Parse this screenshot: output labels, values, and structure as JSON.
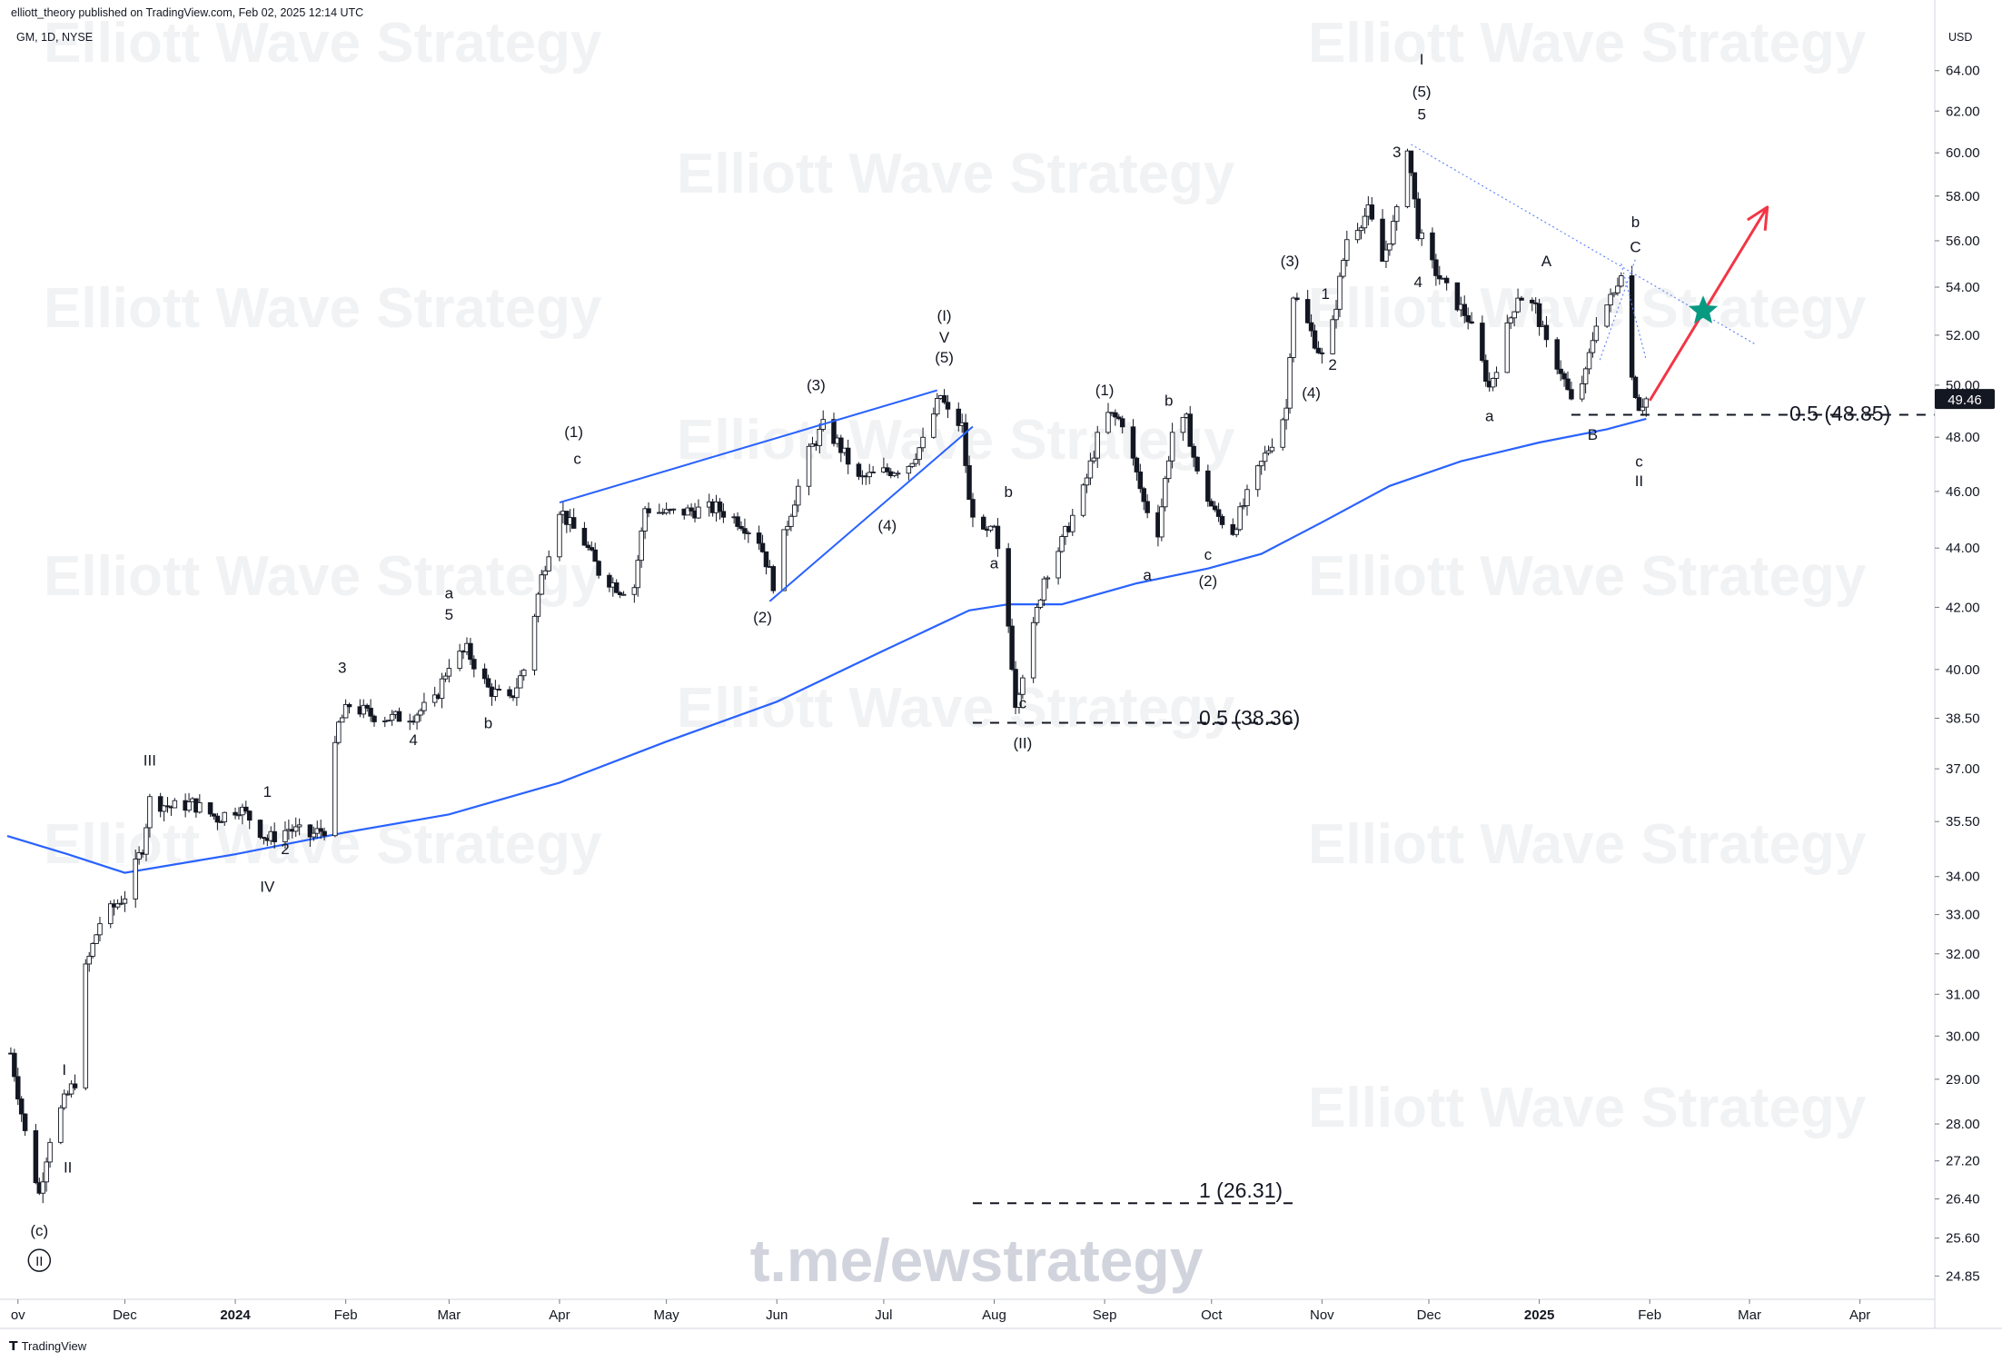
{
  "header": {
    "published_by": "elliott_theory published on TradingView.com, Feb 02, 2025 12:14 UTC",
    "symbol": "GM, 1D, NYSE",
    "currency": "USD",
    "brand": "TradingView"
  },
  "watermarks": {
    "repeated": "Elliott Wave Strategy",
    "telegram": "t.me/ewstrategy"
  },
  "colors": {
    "up_candle": "#ffffff",
    "down_candle": "#131722",
    "candle_outline": "#131722",
    "ma_line": "#2962ff",
    "channel_line": "#2962ff",
    "projection_arrow": "#f23645",
    "target_star": "#089981",
    "last_price_bg": "#131722",
    "watermark": "#f1f2f4"
  },
  "chart_data": {
    "type": "candlestick",
    "title": "",
    "xlabel": "",
    "ylabel": "USD",
    "y_scale": "log",
    "ylim": [
      24.4,
      66.5
    ],
    "x_range": [
      "2023-10-29",
      "2025-04-22"
    ],
    "y_ticks": [
      "64.00",
      "62.00",
      "60.00",
      "58.00",
      "56.00",
      "54.00",
      "52.00",
      "50.00",
      "48.00",
      "46.00",
      "44.00",
      "42.00",
      "40.00",
      "38.50",
      "37.00",
      "35.50",
      "34.00",
      "33.00",
      "32.00",
      "31.00",
      "30.00",
      "29.00",
      "28.00",
      "27.20",
      "26.40",
      "25.60",
      "24.85"
    ],
    "x_ticks": [
      {
        "label": "ov",
        "date": "2023-11-01",
        "bold": false
      },
      {
        "label": "Dec",
        "date": "2023-12-01",
        "bold": false
      },
      {
        "label": "2024",
        "date": "2024-01-01",
        "bold": true
      },
      {
        "label": "Feb",
        "date": "2024-02-01",
        "bold": false
      },
      {
        "label": "Mar",
        "date": "2024-03-01",
        "bold": false
      },
      {
        "label": "Apr",
        "date": "2024-04-01",
        "bold": false
      },
      {
        "label": "May",
        "date": "2024-05-01",
        "bold": false
      },
      {
        "label": "Jun",
        "date": "2024-06-01",
        "bold": false
      },
      {
        "label": "Jul",
        "date": "2024-07-01",
        "bold": false
      },
      {
        "label": "Aug",
        "date": "2024-08-01",
        "bold": false
      },
      {
        "label": "Sep",
        "date": "2024-09-01",
        "bold": false
      },
      {
        "label": "Oct",
        "date": "2024-10-01",
        "bold": false
      },
      {
        "label": "Nov",
        "date": "2024-11-01",
        "bold": false
      },
      {
        "label": "Dec",
        "date": "2024-12-01",
        "bold": false
      },
      {
        "label": "2025",
        "date": "2025-01-01",
        "bold": true
      },
      {
        "label": "Feb",
        "date": "2025-02-01",
        "bold": false
      },
      {
        "label": "Mar",
        "date": "2025-03-01",
        "bold": false
      },
      {
        "label": "Apr",
        "date": "2025-04-01",
        "bold": false
      }
    ],
    "price_path": [
      [
        "2023-10-30",
        29.6
      ],
      [
        "2023-11-03",
        27.8
      ],
      [
        "2023-11-07",
        26.5
      ],
      [
        "2023-11-10",
        27.7
      ],
      [
        "2023-11-14",
        28.5
      ],
      [
        "2023-11-18",
        29.1
      ],
      [
        "2023-11-20",
        31.6
      ],
      [
        "2023-11-24",
        32.8
      ],
      [
        "2023-11-28",
        33.2
      ],
      [
        "2023-12-01",
        33.5
      ],
      [
        "2023-12-06",
        34.8
      ],
      [
        "2023-12-08",
        36.1
      ],
      [
        "2023-12-14",
        35.9
      ],
      [
        "2023-12-20",
        36.0
      ],
      [
        "2023-12-27",
        35.6
      ],
      [
        "2024-01-02",
        35.9
      ],
      [
        "2024-01-05",
        35.6
      ],
      [
        "2024-01-10",
        35.0
      ],
      [
        "2024-01-16",
        35.3
      ],
      [
        "2024-01-22",
        35.1
      ],
      [
        "2024-01-26",
        35.3
      ],
      [
        "2024-01-30",
        38.3
      ],
      [
        "2024-02-02",
        38.9
      ],
      [
        "2024-02-08",
        38.6
      ],
      [
        "2024-02-14",
        38.5
      ],
      [
        "2024-02-20",
        38.6
      ],
      [
        "2024-02-26",
        39.0
      ],
      [
        "2024-03-01",
        40.2
      ],
      [
        "2024-03-06",
        40.6
      ],
      [
        "2024-03-12",
        39.4
      ],
      [
        "2024-03-18",
        39.0
      ],
      [
        "2024-03-22",
        40.0
      ],
      [
        "2024-03-27",
        43.0
      ],
      [
        "2024-04-01",
        45.4
      ],
      [
        "2024-04-04",
        44.8
      ],
      [
        "2024-04-08",
        44.2
      ],
      [
        "2024-04-12",
        43.2
      ],
      [
        "2024-04-18",
        42.6
      ],
      [
        "2024-04-22",
        42.7
      ],
      [
        "2024-04-25",
        45.4
      ],
      [
        "2024-05-01",
        45.2
      ],
      [
        "2024-05-08",
        45.3
      ],
      [
        "2024-05-15",
        45.4
      ],
      [
        "2024-05-22",
        44.9
      ],
      [
        "2024-05-27",
        44.3
      ],
      [
        "2024-05-31",
        42.8
      ],
      [
        "2024-06-04",
        44.9
      ],
      [
        "2024-06-10",
        47.4
      ],
      [
        "2024-06-14",
        48.4
      ],
      [
        "2024-06-18",
        47.8
      ],
      [
        "2024-06-24",
        46.4
      ],
      [
        "2024-06-28",
        46.6
      ],
      [
        "2024-07-04",
        46.8
      ],
      [
        "2024-07-08",
        47.0
      ],
      [
        "2024-07-12",
        47.8
      ],
      [
        "2024-07-17",
        49.6
      ],
      [
        "2024-07-19",
        48.9
      ],
      [
        "2024-07-23",
        48.4
      ],
      [
        "2024-07-25",
        45.6
      ],
      [
        "2024-07-29",
        44.4
      ],
      [
        "2024-08-01",
        44.6
      ],
      [
        "2024-08-05",
        41.4
      ],
      [
        "2024-08-07",
        39.0
      ],
      [
        "2024-08-12",
        41.3
      ],
      [
        "2024-08-15",
        43.0
      ],
      [
        "2024-08-20",
        44.2
      ],
      [
        "2024-08-26",
        46.0
      ],
      [
        "2024-09-01",
        48.9
      ],
      [
        "2024-09-06",
        48.6
      ],
      [
        "2024-09-12",
        45.6
      ],
      [
        "2024-09-16",
        44.6
      ],
      [
        "2024-09-20",
        48.2
      ],
      [
        "2024-09-24",
        48.6
      ],
      [
        "2024-09-27",
        46.6
      ],
      [
        "2024-10-02",
        45.2
      ],
      [
        "2024-10-07",
        44.6
      ],
      [
        "2024-10-12",
        46.1
      ],
      [
        "2024-10-16",
        47.3
      ],
      [
        "2024-10-20",
        48.4
      ],
      [
        "2024-10-22",
        49.1
      ],
      [
        "2024-10-24",
        53.7
      ],
      [
        "2024-10-29",
        52.1
      ],
      [
        "2024-11-01",
        51.1
      ],
      [
        "2024-11-04",
        52.4
      ],
      [
        "2024-11-08",
        56.1
      ],
      [
        "2024-11-14",
        57.3
      ],
      [
        "2024-11-18",
        55.1
      ],
      [
        "2024-11-22",
        57.2
      ],
      [
        "2024-11-25",
        60.4
      ],
      [
        "2024-11-28",
        56.4
      ],
      [
        "2024-12-02",
        54.9
      ],
      [
        "2024-12-06",
        53.9
      ],
      [
        "2024-12-12",
        52.7
      ],
      [
        "2024-12-18",
        49.9
      ],
      [
        "2024-12-20",
        50.8
      ],
      [
        "2024-12-26",
        53.7
      ],
      [
        "2024-12-31",
        53.1
      ],
      [
        "2025-01-03",
        51.6
      ],
      [
        "2025-01-07",
        50.6
      ],
      [
        "2025-01-10",
        49.3
      ],
      [
        "2025-01-14",
        50.4
      ],
      [
        "2025-01-17",
        52.6
      ],
      [
        "2025-01-22",
        53.7
      ],
      [
        "2025-01-24",
        54.8
      ],
      [
        "2025-01-27",
        50.3
      ],
      [
        "2025-01-29",
        49.2
      ],
      [
        "2025-01-31",
        49.46
      ]
    ],
    "ma_200": [
      [
        "2023-10-29",
        35.1
      ],
      [
        "2023-11-15",
        34.6
      ],
      [
        "2023-12-01",
        34.1
      ],
      [
        "2024-01-01",
        34.6
      ],
      [
        "2024-02-01",
        35.2
      ],
      [
        "2024-03-01",
        35.7
      ],
      [
        "2024-04-01",
        36.6
      ],
      [
        "2024-05-01",
        37.8
      ],
      [
        "2024-06-01",
        39.0
      ],
      [
        "2024-07-01",
        40.6
      ],
      [
        "2024-07-25",
        41.9
      ],
      [
        "2024-08-05",
        42.1
      ],
      [
        "2024-08-20",
        42.1
      ],
      [
        "2024-09-10",
        42.8
      ],
      [
        "2024-09-30",
        43.3
      ],
      [
        "2024-10-15",
        43.8
      ],
      [
        "2024-11-01",
        44.9
      ],
      [
        "2024-11-20",
        46.2
      ],
      [
        "2024-12-10",
        47.1
      ],
      [
        "2025-01-01",
        47.8
      ],
      [
        "2025-01-20",
        48.3
      ],
      [
        "2025-01-31",
        48.7
      ]
    ],
    "lines": [
      {
        "name": "channel-upper",
        "from": [
          "2024-04-01",
          45.6
        ],
        "to": [
          "2024-07-16",
          49.8
        ],
        "style": "solid"
      },
      {
        "name": "channel-lower",
        "from": [
          "2024-05-30",
          42.2
        ],
        "to": [
          "2024-07-26",
          48.4
        ],
        "style": "solid"
      },
      {
        "name": "wedge-upper",
        "from": [
          "2025-01-24",
          55.0
        ],
        "to": [
          "2025-01-31",
          51.0
        ],
        "style": "dotted"
      },
      {
        "name": "wedge-lower",
        "from": [
          "2025-01-18",
          51.0
        ],
        "to": [
          "2025-01-28",
          55.2
        ],
        "style": "dotted"
      },
      {
        "name": "resistance",
        "from": [
          "2024-11-26",
          60.4
        ],
        "to": [
          "2025-03-03",
          51.6
        ],
        "style": "dotted"
      }
    ],
    "levels": [
      {
        "label": "0.5 (48.85)",
        "price": 48.85,
        "from": "2025-01-10",
        "to": "2025-04-22"
      },
      {
        "label": "0.5 (38.36)",
        "price": 38.36,
        "from": "2024-07-26",
        "to": "2024-10-26"
      },
      {
        "label": "1 (26.31)",
        "price": 26.31,
        "from": "2024-07-26",
        "to": "2024-10-26"
      }
    ],
    "projection": {
      "from": [
        "2025-02-01",
        49.4
      ],
      "to": [
        "2025-03-06",
        57.5
      ]
    },
    "target_star": [
      "2025-02-16",
      53.0
    ],
    "last_price": {
      "value": 49.46,
      "label": "49.46"
    },
    "annotations": [
      {
        "t": "(c)",
        "d": "2023-11-07",
        "p": 25.65,
        "circled": false
      },
      {
        "t": "II",
        "d": "2023-11-07",
        "p": 25.05,
        "circled": true
      },
      {
        "t": "I",
        "d": "2023-11-14",
        "p": 29.1,
        "circled": false
      },
      {
        "t": "II",
        "d": "2023-11-15",
        "p": 26.95,
        "circled": false
      },
      {
        "t": "III",
        "d": "2023-12-08",
        "p": 37.1,
        "circled": false
      },
      {
        "t": "1",
        "d": "2024-01-10",
        "p": 36.2,
        "circled": false
      },
      {
        "t": "2",
        "d": "2024-01-15",
        "p": 34.6,
        "circled": false
      },
      {
        "t": "IV",
        "d": "2024-01-10",
        "p": 33.6,
        "circled": false
      },
      {
        "t": "3",
        "d": "2024-01-31",
        "p": 39.9,
        "circled": false
      },
      {
        "t": "4",
        "d": "2024-02-20",
        "p": 37.7,
        "circled": false
      },
      {
        "t": "a",
        "d": "2024-03-01",
        "p": 42.3,
        "circled": false
      },
      {
        "t": "5",
        "d": "2024-03-01",
        "p": 41.6,
        "circled": false
      },
      {
        "t": "b",
        "d": "2024-03-12",
        "p": 38.2,
        "circled": false
      },
      {
        "t": "(1)",
        "d": "2024-04-05",
        "p": 48.0,
        "circled": false
      },
      {
        "t": "c",
        "d": "2024-04-06",
        "p": 47.0,
        "circled": false
      },
      {
        "t": "(2)",
        "d": "2024-05-28",
        "p": 41.5,
        "circled": false
      },
      {
        "t": "(3)",
        "d": "2024-06-12",
        "p": 49.8,
        "circled": false
      },
      {
        "t": "(4)",
        "d": "2024-07-02",
        "p": 44.6,
        "circled": false
      },
      {
        "t": "(I)",
        "d": "2024-07-18",
        "p": 52.6,
        "circled": false
      },
      {
        "t": "V",
        "d": "2024-07-18",
        "p": 51.7,
        "circled": false
      },
      {
        "t": "(5)",
        "d": "2024-07-18",
        "p": 50.9,
        "circled": false
      },
      {
        "t": "b",
        "d": "2024-08-05",
        "p": 45.8,
        "circled": false
      },
      {
        "t": "a",
        "d": "2024-08-01",
        "p": 43.3,
        "circled": false
      },
      {
        "t": "c",
        "d": "2024-08-09",
        "p": 38.8,
        "circled": false
      },
      {
        "t": "(II)",
        "d": "2024-08-09",
        "p": 37.6,
        "circled": false
      },
      {
        "t": "(1)",
        "d": "2024-09-01",
        "p": 49.6,
        "circled": false
      },
      {
        "t": "b",
        "d": "2024-09-19",
        "p": 49.2,
        "circled": false
      },
      {
        "t": "a",
        "d": "2024-09-13",
        "p": 42.9,
        "circled": false
      },
      {
        "t": "c",
        "d": "2024-09-30",
        "p": 43.6,
        "circled": false
      },
      {
        "t": "(2)",
        "d": "2024-09-30",
        "p": 42.7,
        "circled": false
      },
      {
        "t": "(3)",
        "d": "2024-10-23",
        "p": 54.9,
        "circled": false
      },
      {
        "t": "1",
        "d": "2024-11-02",
        "p": 53.5,
        "circled": false
      },
      {
        "t": "2",
        "d": "2024-11-04",
        "p": 50.6,
        "circled": false
      },
      {
        "t": "(4)",
        "d": "2024-10-29",
        "p": 49.5,
        "circled": false
      },
      {
        "t": "3",
        "d": "2024-11-22",
        "p": 59.8,
        "circled": false
      },
      {
        "t": "4",
        "d": "2024-11-28",
        "p": 54.0,
        "circled": false
      },
      {
        "t": "I",
        "d": "2024-11-29",
        "p": 64.3,
        "circled": false
      },
      {
        "t": "(5)",
        "d": "2024-11-29",
        "p": 62.7,
        "circled": false
      },
      {
        "t": "5",
        "d": "2024-11-29",
        "p": 61.6,
        "circled": false
      },
      {
        "t": "A",
        "d": "2025-01-03",
        "p": 54.9,
        "circled": false
      },
      {
        "t": "a",
        "d": "2024-12-18",
        "p": 48.6,
        "circled": false
      },
      {
        "t": "B",
        "d": "2025-01-16",
        "p": 47.9,
        "circled": false
      },
      {
        "t": "b",
        "d": "2025-01-28",
        "p": 56.6,
        "circled": false
      },
      {
        "t": "C",
        "d": "2025-01-28",
        "p": 55.5,
        "circled": false
      },
      {
        "t": "c",
        "d": "2025-01-29",
        "p": 46.9,
        "circled": false
      },
      {
        "t": "II",
        "d": "2025-01-29",
        "p": 46.2,
        "circled": false
      }
    ]
  }
}
